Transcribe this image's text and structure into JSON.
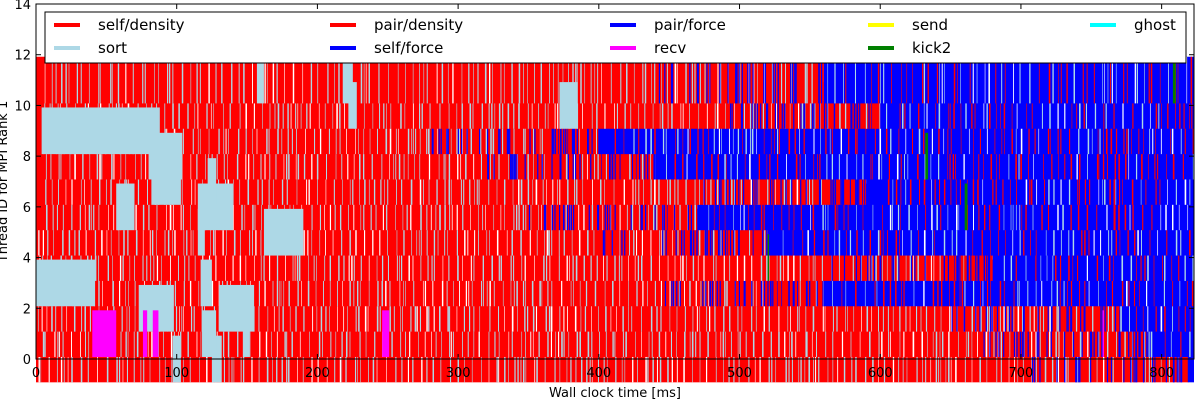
{
  "chart_data": {
    "type": "bar",
    "subtype": "gantt-timeline",
    "xlabel": "Wall clock time [ms]",
    "ylabel": "Thread ID for MPI Rank 1",
    "xlim": [
      0,
      823
    ],
    "ylim": [
      0,
      14
    ],
    "xticks": [
      0,
      100,
      200,
      300,
      400,
      500,
      600,
      700,
      800
    ],
    "yticks": [
      0,
      2,
      4,
      6,
      8,
      10,
      12,
      14
    ],
    "grid": false,
    "legend_position": "top",
    "legend": [
      {
        "name": "self/density",
        "color": "#ff0000"
      },
      {
        "name": "sort",
        "color": "#add8e6"
      },
      {
        "name": "pair/density",
        "color": "#ff0000"
      },
      {
        "name": "self/force",
        "color": "#0000ff"
      },
      {
        "name": "pair/force",
        "color": "#0000ff"
      },
      {
        "name": "recv",
        "color": "#ff00ff"
      },
      {
        "name": "send",
        "color": "#ffff00"
      },
      {
        "name": "kick2",
        "color": "#008000"
      },
      {
        "name": "ghost",
        "color": "#00ffff"
      }
    ],
    "threads": [
      0,
      1,
      2,
      3,
      4,
      5,
      6,
      7,
      8,
      9,
      10,
      11
    ],
    "phase_switch_ms": [
      819,
      790,
      770,
      560,
      680,
      520,
      470,
      590,
      440,
      400,
      600,
      560
    ],
    "sort_blocks": [
      {
        "thread": 0,
        "start": 97,
        "end": 103
      },
      {
        "thread": 0,
        "start": 125,
        "end": 132
      },
      {
        "thread": 1,
        "start": 118,
        "end": 128
      },
      {
        "thread": 1,
        "start": 147,
        "end": 152
      },
      {
        "thread": 2,
        "start": 73,
        "end": 98
      },
      {
        "thread": 2,
        "start": 130,
        "end": 155
      },
      {
        "thread": 3,
        "start": 0,
        "end": 42
      },
      {
        "thread": 3,
        "start": 117,
        "end": 125
      },
      {
        "thread": 5,
        "start": 115,
        "end": 120
      },
      {
        "thread": 5,
        "start": 162,
        "end": 190
      },
      {
        "thread": 6,
        "start": 57,
        "end": 70
      },
      {
        "thread": 6,
        "start": 115,
        "end": 140
      },
      {
        "thread": 7,
        "start": 82,
        "end": 103
      },
      {
        "thread": 7,
        "start": 122,
        "end": 128
      },
      {
        "thread": 8,
        "start": 80,
        "end": 104
      },
      {
        "thread": 9,
        "start": 4,
        "end": 88
      },
      {
        "thread": 10,
        "start": 222,
        "end": 228
      },
      {
        "thread": 10,
        "start": 372,
        "end": 385
      },
      {
        "thread": 11,
        "start": 157,
        "end": 162
      },
      {
        "thread": 11,
        "start": 218,
        "end": 225
      }
    ],
    "recv_blocks": [
      {
        "thread": 1,
        "start": 40,
        "end": 57
      },
      {
        "thread": 1,
        "start": 76,
        "end": 79
      },
      {
        "thread": 1,
        "start": 83,
        "end": 87
      },
      {
        "thread": 1,
        "start": 246,
        "end": 251
      },
      {
        "thread": 1,
        "start": 758,
        "end": 759
      }
    ],
    "kick2_blocks": [
      {
        "thread": 6,
        "start": 660,
        "end": 662
      },
      {
        "thread": 4,
        "start": 520,
        "end": 521
      },
      {
        "thread": 11,
        "start": 808,
        "end": 810
      },
      {
        "thread": 8,
        "start": 632,
        "end": 634
      }
    ]
  }
}
